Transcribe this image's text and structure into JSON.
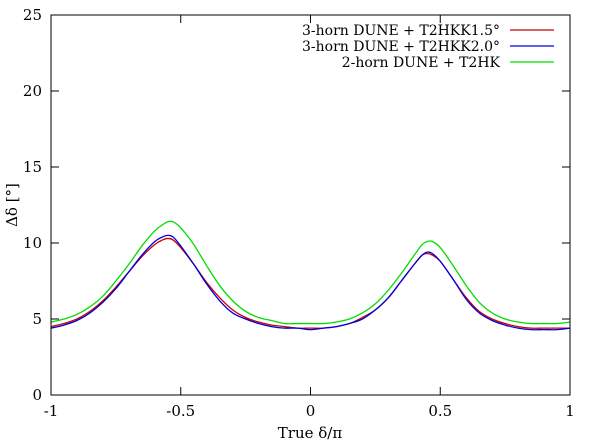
{
  "chart_data": {
    "type": "line",
    "xlabel": "True δ/π",
    "ylabel": "Δδ [°]",
    "xlim": [
      -1,
      1
    ],
    "ylim": [
      0,
      25
    ],
    "xticks": [
      "-1",
      "-0.5",
      "0",
      "0.5",
      "1"
    ],
    "yticks": [
      "0",
      "5",
      "10",
      "15",
      "20",
      "25"
    ],
    "grid": false,
    "legend_position": "top-right",
    "x": [
      -1,
      -0.95,
      -0.9,
      -0.85,
      -0.8,
      -0.75,
      -0.7,
      -0.65,
      -0.6,
      -0.57,
      -0.55,
      -0.53,
      -0.5,
      -0.45,
      -0.4,
      -0.35,
      -0.3,
      -0.25,
      -0.2,
      -0.15,
      -0.1,
      -0.05,
      0,
      0.05,
      0.1,
      0.15,
      0.2,
      0.25,
      0.3,
      0.35,
      0.4,
      0.43,
      0.45,
      0.47,
      0.5,
      0.55,
      0.6,
      0.65,
      0.7,
      0.75,
      0.8,
      0.85,
      0.9,
      0.95,
      1
    ],
    "series": [
      {
        "name": "3-horn DUNE + T2HKK1.5°",
        "color": "#cc0000",
        "values": [
          4.5,
          4.7,
          5.0,
          5.5,
          6.2,
          7.1,
          8.1,
          9.1,
          9.9,
          10.2,
          10.3,
          10.2,
          9.7,
          8.6,
          7.4,
          6.4,
          5.6,
          5.1,
          4.8,
          4.6,
          4.5,
          4.4,
          4.4,
          4.4,
          4.5,
          4.7,
          5.1,
          5.6,
          6.4,
          7.5,
          8.6,
          9.2,
          9.3,
          9.2,
          8.8,
          7.6,
          6.4,
          5.5,
          5.0,
          4.7,
          4.5,
          4.4,
          4.4,
          4.4,
          4.4
        ]
      },
      {
        "name": "3-horn DUNE + T2HKK2.0°",
        "color": "#0000dd",
        "values": [
          4.4,
          4.6,
          4.9,
          5.4,
          6.1,
          7.0,
          8.1,
          9.2,
          10.1,
          10.4,
          10.5,
          10.4,
          9.8,
          8.6,
          7.3,
          6.2,
          5.4,
          5.0,
          4.7,
          4.5,
          4.4,
          4.4,
          4.3,
          4.4,
          4.5,
          4.7,
          5.0,
          5.6,
          6.4,
          7.5,
          8.6,
          9.2,
          9.4,
          9.3,
          8.8,
          7.6,
          6.3,
          5.4,
          4.9,
          4.6,
          4.4,
          4.3,
          4.3,
          4.3,
          4.4
        ]
      },
      {
        "name": "2-horn DUNE + T2HK",
        "color": "#00dd00",
        "values": [
          4.8,
          5.0,
          5.3,
          5.8,
          6.5,
          7.5,
          8.6,
          9.8,
          10.8,
          11.2,
          11.4,
          11.4,
          11.0,
          9.9,
          8.5,
          7.2,
          6.2,
          5.5,
          5.1,
          4.9,
          4.7,
          4.7,
          4.7,
          4.7,
          4.8,
          5.0,
          5.4,
          6.0,
          6.9,
          8.0,
          9.2,
          9.9,
          10.1,
          10.1,
          9.7,
          8.5,
          7.2,
          6.1,
          5.4,
          5.0,
          4.8,
          4.7,
          4.7,
          4.7,
          4.8
        ]
      }
    ]
  }
}
